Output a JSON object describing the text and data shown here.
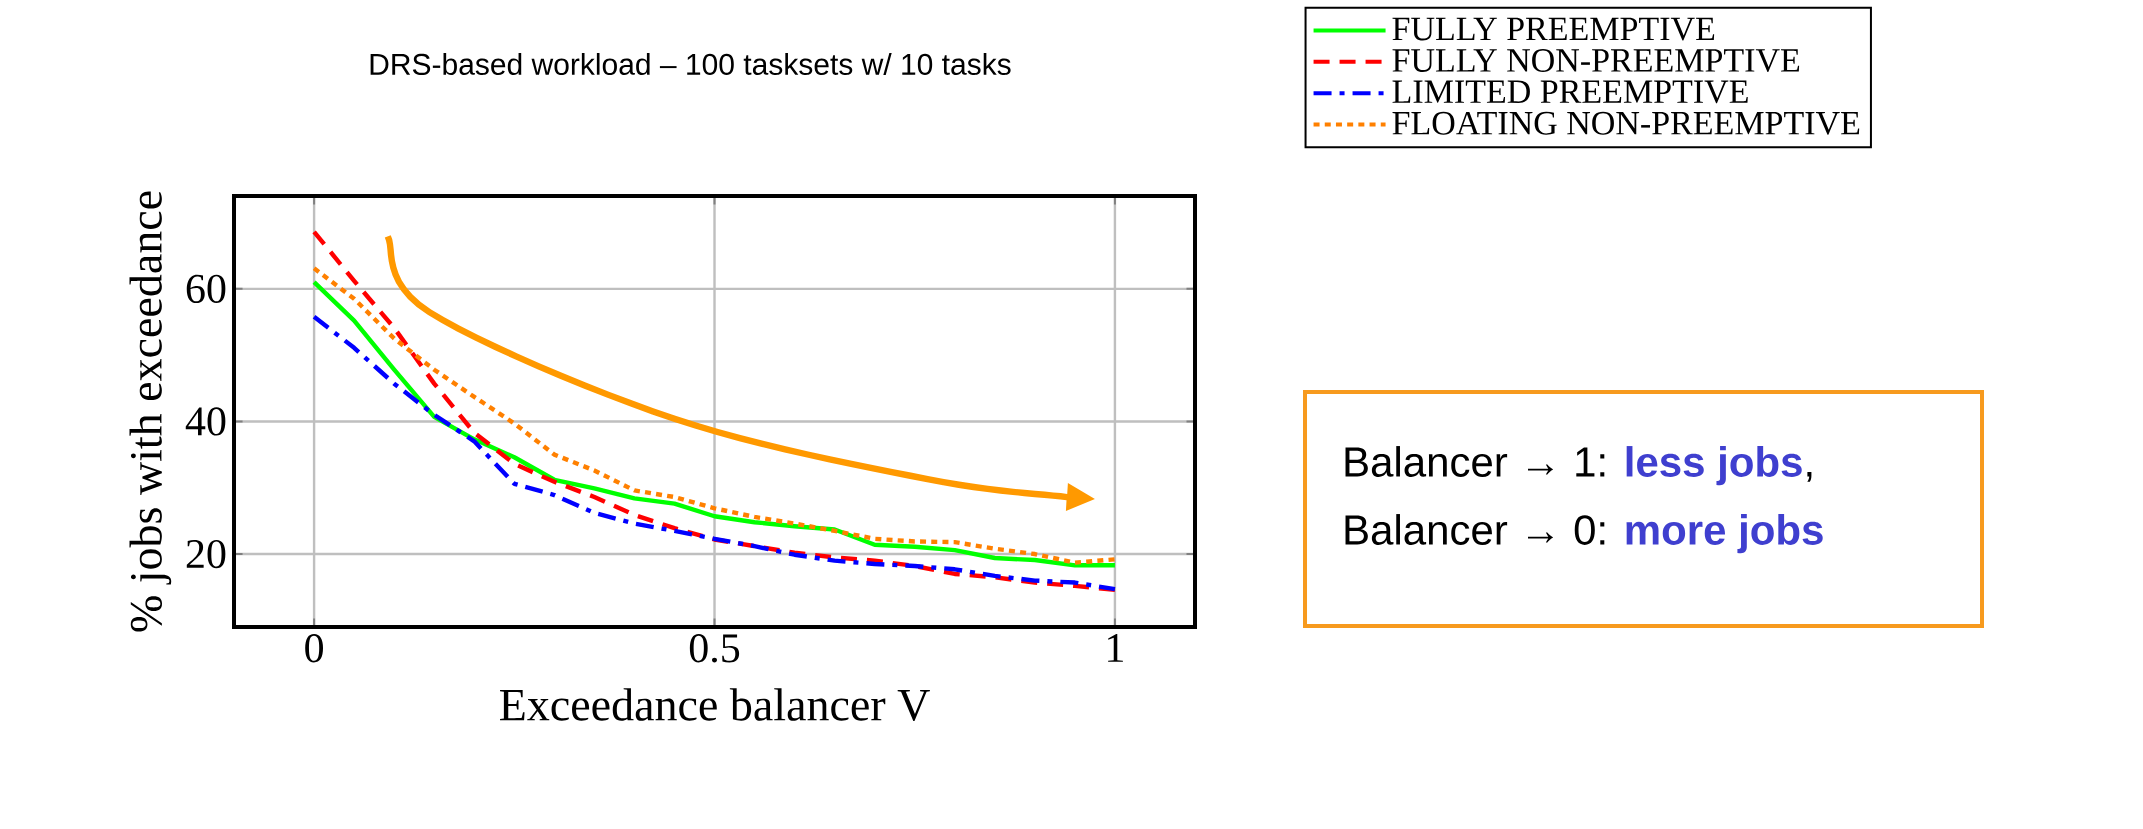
{
  "chart_data": {
    "type": "line",
    "title": "DRS-based workload – 100 tasksets w/ 10 tasks",
    "xlabel": "Exceedance balancer V",
    "ylabel": "% jobs with exceedance",
    "x": [
      0,
      0.05,
      0.1,
      0.15,
      0.2,
      0.25,
      0.3,
      0.35,
      0.4,
      0.45,
      0.5,
      0.55,
      0.6,
      0.65,
      0.7,
      0.75,
      0.8,
      0.85,
      0.9,
      0.95,
      1
    ],
    "series": [
      {
        "name": "FULLY PREEMPTIVE",
        "color": "#00ff00",
        "line_style": "solid",
        "values": [
          61.0,
          55.2,
          47.8,
          40.7,
          37.3,
          34.6,
          31.2,
          29.9,
          28.4,
          27.6,
          25.7,
          24.8,
          24.2,
          23.7,
          21.4,
          21.1,
          20.6,
          19.4,
          19.1,
          18.3,
          18.3
        ]
      },
      {
        "name": "FULLY NON-PREEMPTIVE",
        "color": "#ff0000",
        "line_style": "dashed",
        "values": [
          68.6,
          61.2,
          54.1,
          45.7,
          38.3,
          33.6,
          30.9,
          28.6,
          25.9,
          23.9,
          22.2,
          21.2,
          20.2,
          19.5,
          19.0,
          18.2,
          17.0,
          16.5,
          15.7,
          15.2,
          14.6
        ]
      },
      {
        "name": "LIMITED PREEMPTIVE",
        "color": "#0000ff",
        "line_style": "dashdot",
        "values": [
          55.8,
          51.1,
          45.7,
          41.0,
          37.0,
          30.6,
          28.9,
          26.2,
          24.6,
          23.5,
          22.3,
          21.2,
          19.9,
          19.0,
          18.5,
          18.2,
          17.7,
          16.7,
          16.0,
          15.7,
          14.7
        ]
      },
      {
        "name": "FLOATING NON-PREEMPTIVE",
        "color": "#ff8000",
        "line_style": "dotted",
        "values": [
          63.1,
          58.5,
          52.5,
          47.8,
          43.7,
          39.7,
          35.0,
          32.6,
          29.6,
          28.6,
          26.9,
          25.6,
          24.6,
          23.5,
          22.3,
          21.9,
          21.8,
          20.8,
          20.0,
          18.7,
          19.2
        ]
      }
    ],
    "xlim": [
      -0.1,
      1.1
    ],
    "ylim": [
      9,
      74
    ],
    "xticks": [
      0,
      0.5,
      1
    ],
    "yticks": [
      20,
      40,
      60
    ],
    "grid": true,
    "legend": "top right",
    "annotations": [
      "Balancer → 1: **less jobs**,",
      "Balancer → 0: **more jobs**"
    ]
  }
}
